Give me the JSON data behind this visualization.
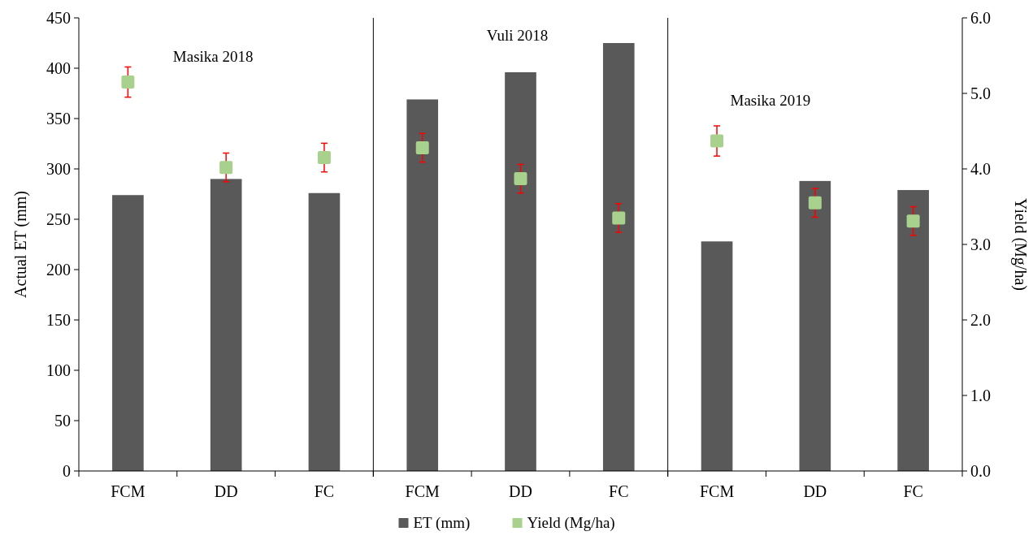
{
  "chart_data": {
    "type": "bar",
    "categories": [
      "FCM",
      "DD",
      "FC",
      "FCM",
      "DD",
      "FC",
      "FCM",
      "DD",
      "FC"
    ],
    "series": [
      {
        "name": "ET (mm)",
        "color": "#595959",
        "values": [
          274,
          290,
          276,
          369,
          396,
          425,
          228,
          288,
          279
        ]
      },
      {
        "name": "Yield (Mg/ha)",
        "type": "scatter",
        "axis": "y2",
        "color": "#a9d18e",
        "marker": "square",
        "values": [
          5.15,
          4.02,
          4.15,
          4.28,
          3.87,
          3.35,
          4.37,
          3.55,
          3.31
        ],
        "errors": [
          0.2,
          0.19,
          0.19,
          0.19,
          0.19,
          0.19,
          0.2,
          0.19,
          0.19
        ]
      }
    ],
    "ylabel": "Actual ET (mm)",
    "y2label": "Yield (Mg/ha)",
    "ylim": [
      0,
      450
    ],
    "yticks": [
      0,
      50,
      100,
      150,
      200,
      250,
      300,
      350,
      400,
      450
    ],
    "y2lim": [
      0,
      6
    ],
    "y2ticks": [
      {
        "value": 0,
        "label": "0.0"
      },
      {
        "value": 1,
        "label": "1.0"
      },
      {
        "value": 2,
        "label": "2.0"
      },
      {
        "value": 3,
        "label": "3.0"
      },
      {
        "value": 4,
        "label": "4.0"
      },
      {
        "value": 5,
        "label": "5.0"
      },
      {
        "value": 6,
        "label": "6.0"
      }
    ],
    "annotations": [
      "Masika 2018",
      "Vuli 2018",
      "Masika 2019"
    ],
    "grid": false,
    "legend": "bottom"
  }
}
